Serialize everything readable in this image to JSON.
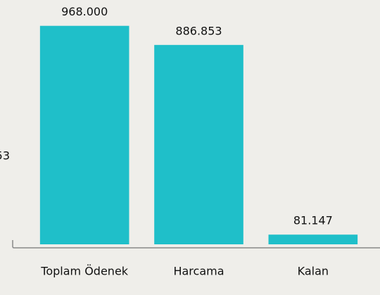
{
  "chart_data": {
    "type": "bar",
    "categories": [
      "Toplam Ödenek",
      "Harcama",
      "Kalan"
    ],
    "values": [
      968000,
      886853,
      81147
    ],
    "value_labels": [
      "968.000",
      "886.853",
      "81.147"
    ],
    "color": "#1fbfc9",
    "ylim": [
      40000,
      1000000
    ],
    "annotation": "53"
  }
}
